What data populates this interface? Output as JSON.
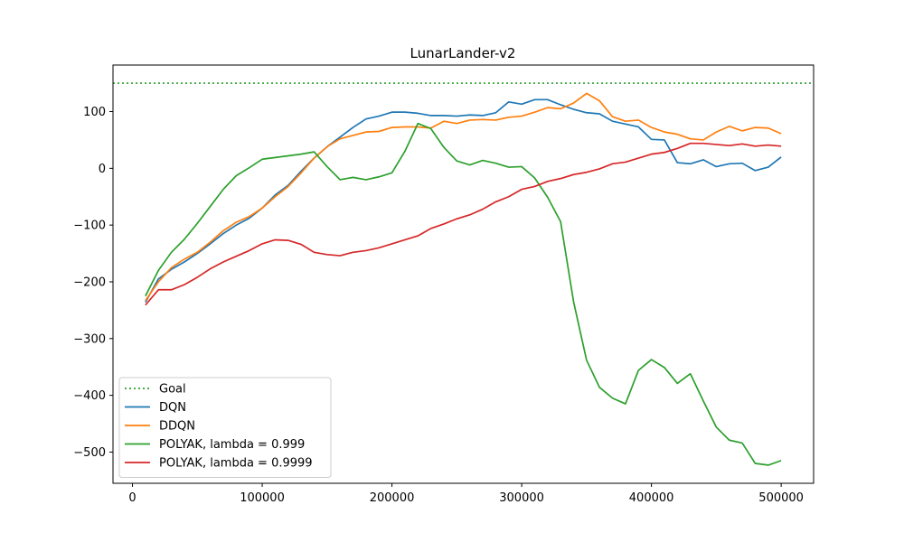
{
  "chart_data": {
    "type": "line",
    "title": "LunarLander-v2",
    "xlabel": "",
    "ylabel": "",
    "xlim": [
      -15000,
      525000
    ],
    "ylim": [
      -555,
      182
    ],
    "xticks": [
      0,
      100000,
      200000,
      300000,
      400000,
      500000
    ],
    "xtick_labels": [
      "0",
      "100000",
      "200000",
      "300000",
      "400000",
      "500000"
    ],
    "yticks": [
      -500,
      -400,
      -300,
      -200,
      -100,
      0,
      100
    ],
    "ytick_labels": [
      "−500",
      "−400",
      "−300",
      "−200",
      "−100",
      "0",
      "100"
    ],
    "grid": false,
    "legend_position": "lower-left",
    "goal": {
      "name": "Goal",
      "value": 150,
      "color": "#2ca02c",
      "style": "dotted"
    },
    "x": [
      10000,
      20000,
      30000,
      40000,
      50000,
      60000,
      70000,
      80000,
      90000,
      100000,
      110000,
      120000,
      130000,
      140000,
      150000,
      160000,
      170000,
      180000,
      190000,
      200000,
      210000,
      220000,
      230000,
      240000,
      250000,
      260000,
      270000,
      280000,
      290000,
      300000,
      310000,
      320000,
      330000,
      340000,
      350000,
      360000,
      370000,
      380000,
      390000,
      400000,
      410000,
      420000,
      430000,
      440000,
      450000,
      460000,
      470000,
      480000,
      490000,
      500000
    ],
    "series": [
      {
        "name": "DQN",
        "color": "#1f77b4",
        "values": [
          -236,
          -195,
          -178,
          -165,
          -150,
          -133,
          -115,
          -100,
          -88,
          -70,
          -47,
          -30,
          -5,
          18,
          38,
          55,
          72,
          87,
          92,
          99,
          99,
          97,
          93,
          93,
          92,
          94,
          93,
          98,
          117,
          113,
          121,
          121,
          112,
          104,
          98,
          96,
          83,
          78,
          73,
          51,
          50,
          10,
          8,
          15,
          3,
          8,
          9,
          -4,
          2,
          20
        ]
      },
      {
        "name": "DDQN",
        "color": "#ff7f0e",
        "values": [
          -233,
          -200,
          -175,
          -160,
          -148,
          -130,
          -110,
          -95,
          -85,
          -70,
          -50,
          -32,
          -8,
          18,
          38,
          52,
          58,
          64,
          65,
          72,
          73,
          73,
          71,
          83,
          79,
          85,
          86,
          85,
          90,
          92,
          99,
          107,
          105,
          115,
          132,
          119,
          91,
          83,
          85,
          72,
          64,
          60,
          52,
          50,
          64,
          74,
          66,
          72,
          71,
          61
        ]
      },
      {
        "name": "POLYAK, lambda = 0.999",
        "color": "#2ca02c",
        "values": [
          -225,
          -180,
          -148,
          -125,
          -97,
          -67,
          -37,
          -13,
          1,
          16,
          19,
          22,
          25,
          29,
          3,
          -20,
          -16,
          -20,
          -15,
          -8,
          30,
          79,
          70,
          37,
          13,
          6,
          14,
          9,
          2,
          3,
          -17,
          -51,
          -94,
          -235,
          -338,
          -386,
          -405,
          -415,
          -356,
          -337,
          -351,
          -379,
          -362,
          -410,
          -456,
          -479,
          -484,
          -520,
          -523,
          -515
        ]
      },
      {
        "name": "POLYAK, lambda = 0.9999",
        "color": "#d62728",
        "values": [
          -241,
          -214,
          -214,
          -205,
          -192,
          -177,
          -165,
          -155,
          -145,
          -133,
          -126,
          -127,
          -134,
          -148,
          -152,
          -154,
          -148,
          -145,
          -140,
          -133,
          -126,
          -119,
          -106,
          -98,
          -89,
          -82,
          -72,
          -59,
          -50,
          -37,
          -32,
          -23,
          -18,
          -11,
          -7,
          -1,
          8,
          11,
          18,
          25,
          28,
          35,
          44,
          44,
          42,
          40,
          43,
          39,
          41,
          39
        ]
      }
    ]
  }
}
